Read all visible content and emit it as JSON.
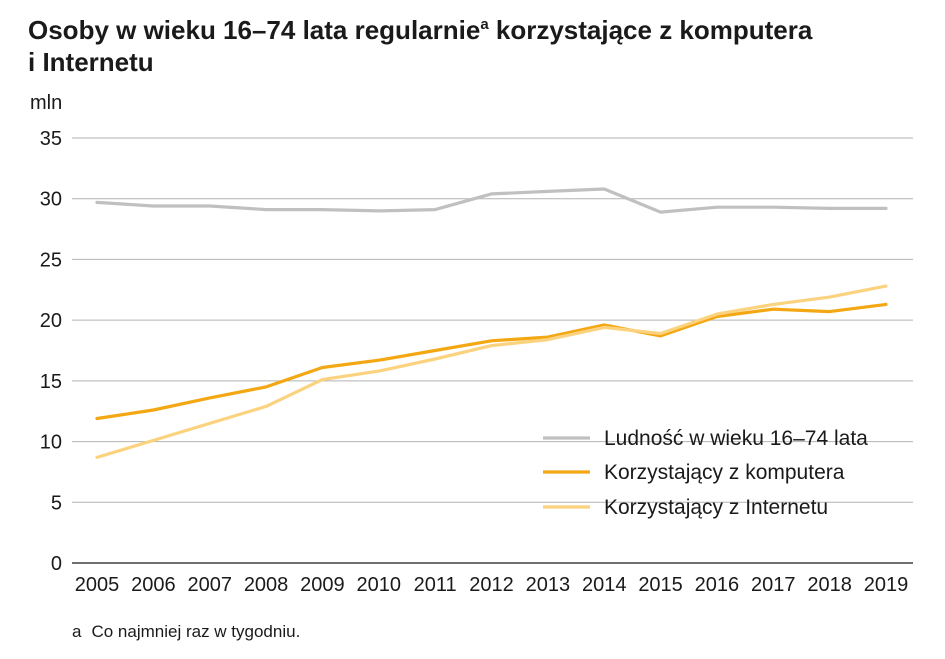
{
  "chart_data": {
    "type": "line",
    "title": "Osoby w wieku 16–74 lata regularnie",
    "title_sup": "a",
    "title_cont": " korzystające z komputera",
    "title_line2": "i Internetu",
    "ylabel": "mln",
    "ylim": [
      0,
      35
    ],
    "yticks": [
      0,
      5,
      10,
      15,
      20,
      25,
      30,
      35
    ],
    "x": [
      "2005",
      "2006",
      "2007",
      "2008",
      "2009",
      "2010",
      "2011",
      "2012",
      "2013",
      "2014",
      "2015",
      "2016",
      "2017",
      "2018",
      "2019"
    ],
    "grid": true,
    "legend_position": "bottom-right",
    "series": [
      {
        "name": "Ludność w wieku 16–74 lata",
        "color": "#c0c0c0",
        "values": [
          29.7,
          29.4,
          29.4,
          29.1,
          29.1,
          29.0,
          29.1,
          30.4,
          30.6,
          30.8,
          28.9,
          29.3,
          29.3,
          29.2,
          29.2
        ]
      },
      {
        "name": "Korzystający z komputera",
        "color": "#f3a712",
        "values": [
          11.9,
          12.6,
          13.6,
          14.5,
          16.1,
          16.7,
          17.5,
          18.3,
          18.6,
          19.6,
          18.7,
          20.3,
          20.9,
          20.7,
          21.3
        ]
      },
      {
        "name": "Korzystający z Internetu",
        "color": "#fbd27e",
        "values": [
          8.7,
          10.1,
          11.5,
          12.9,
          15.1,
          15.8,
          16.8,
          17.9,
          18.4,
          19.4,
          18.9,
          20.5,
          21.3,
          21.9,
          22.8
        ]
      }
    ]
  },
  "footnote": {
    "mark": "a",
    "text": "Co najmniej raz w tygodniu."
  }
}
